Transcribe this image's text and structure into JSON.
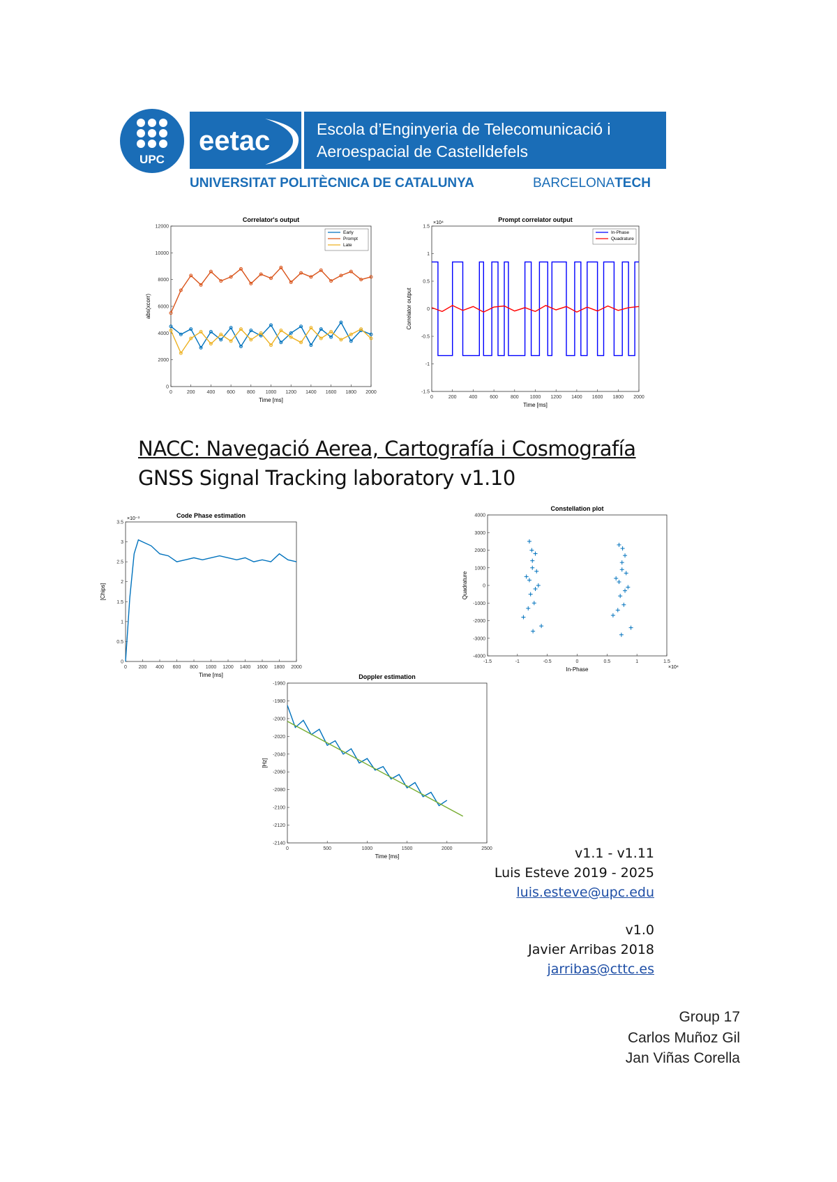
{
  "header": {
    "logo_upc": "UPC",
    "logo_eetac": "eetac",
    "school_line1": "Escola d’Enginyeria de Telecomunicació i",
    "school_line2": "Aeroespacial de Castelldefels",
    "university": "UNIVERSITAT POLITÈCNICA DE CATALUNYA",
    "brand_a": "BARCELONA",
    "brand_b": "TECH"
  },
  "chart_data": [
    {
      "type": "line",
      "title": "Correlator's output",
      "xlabel": "Time [ms]",
      "ylabel": "abs(xcorr)",
      "xlim": [
        0,
        2000
      ],
      "ylim": [
        0,
        12000
      ],
      "xticks": [
        0,
        200,
        400,
        600,
        800,
        1000,
        1200,
        1400,
        1600,
        1800,
        2000
      ],
      "yticks": [
        0,
        2000,
        4000,
        6000,
        8000,
        10000,
        12000
      ],
      "legend": "upper right",
      "markers": true,
      "series": [
        {
          "name": "Early",
          "color": "#0072bd",
          "x": [
            0,
            100,
            200,
            300,
            400,
            500,
            600,
            700,
            800,
            900,
            1000,
            1100,
            1200,
            1300,
            1400,
            1500,
            1600,
            1700,
            1800,
            1900,
            2000
          ],
          "values": [
            4500,
            3900,
            4300,
            2900,
            4100,
            3500,
            4400,
            3000,
            4200,
            3800,
            4600,
            3300,
            4000,
            4500,
            3100,
            4300,
            3700,
            4800,
            3400,
            4200,
            3900
          ]
        },
        {
          "name": "Prompt",
          "color": "#d95319",
          "x": [
            0,
            100,
            200,
            300,
            400,
            500,
            600,
            700,
            800,
            900,
            1000,
            1100,
            1200,
            1300,
            1400,
            1500,
            1600,
            1700,
            1800,
            1900,
            2000
          ],
          "values": [
            5500,
            7200,
            8300,
            7600,
            8600,
            7900,
            8200,
            8800,
            7700,
            8400,
            8100,
            8900,
            7800,
            8500,
            8200,
            8700,
            7900,
            8300,
            8600,
            8000,
            8200
          ]
        },
        {
          "name": "Late",
          "color": "#edb120",
          "x": [
            0,
            100,
            200,
            300,
            400,
            500,
            600,
            700,
            800,
            900,
            1000,
            1100,
            1200,
            1300,
            1400,
            1500,
            1600,
            1700,
            1800,
            1900,
            2000
          ],
          "values": [
            4200,
            2500,
            3600,
            4100,
            3200,
            3900,
            3400,
            4300,
            3500,
            4000,
            3100,
            4200,
            3700,
            3300,
            4400,
            3600,
            4100,
            3500,
            3900,
            4300,
            3600
          ]
        }
      ]
    },
    {
      "type": "line",
      "title": "Prompt correlator output",
      "xlabel": "Time [ms]",
      "ylabel": "Correlator output",
      "xlim": [
        0,
        2000
      ],
      "ylim": [
        -1.5,
        1.5
      ],
      "y_multiplier": "×10⁴",
      "xticks": [
        0,
        200,
        400,
        600,
        800,
        1000,
        1200,
        1400,
        1600,
        1800,
        2000
      ],
      "yticks": [
        -1.5,
        -1,
        -0.5,
        0,
        0.5,
        1,
        1.5
      ],
      "legend": "upper right",
      "series": [
        {
          "name": "In-Phase",
          "color": "#0000ff",
          "x": [
            0,
            60,
            60,
            200,
            200,
            300,
            300,
            460,
            460,
            500,
            500,
            580,
            580,
            640,
            640,
            700,
            700,
            740,
            740,
            900,
            900,
            960,
            960,
            1040,
            1040,
            1120,
            1120,
            1160,
            1160,
            1300,
            1300,
            1380,
            1380,
            1440,
            1440,
            1500,
            1500,
            1600,
            1600,
            1660,
            1660,
            1760,
            1760,
            1840,
            1840,
            1900,
            1900,
            1960,
            1960,
            2000
          ],
          "values": [
            0.85,
            0.85,
            -0.85,
            -0.85,
            0.85,
            0.85,
            -0.85,
            -0.85,
            0.85,
            0.85,
            -0.85,
            -0.85,
            0.85,
            0.85,
            -0.85,
            -0.85,
            0.85,
            0.85,
            -0.85,
            -0.85,
            0.85,
            0.85,
            -0.85,
            -0.85,
            0.85,
            0.85,
            -0.85,
            -0.85,
            0.85,
            0.85,
            -0.85,
            -0.85,
            0.85,
            0.85,
            -0.85,
            -0.85,
            0.85,
            0.85,
            -0.85,
            -0.85,
            0.85,
            0.85,
            -0.85,
            -0.85,
            0.85,
            0.85,
            -0.85,
            -0.85,
            0.85,
            0.85
          ]
        },
        {
          "name": "Quadrature",
          "color": "#ff0000",
          "x": [
            0,
            100,
            200,
            300,
            400,
            500,
            600,
            700,
            800,
            900,
            1000,
            1100,
            1200,
            1300,
            1400,
            1500,
            1600,
            1700,
            1800,
            1900,
            2000
          ],
          "values": [
            0.02,
            -0.05,
            0.06,
            -0.03,
            0.04,
            -0.06,
            0.03,
            0.05,
            -0.04,
            0.02,
            -0.05,
            0.06,
            -0.02,
            0.04,
            -0.06,
            0.03,
            -0.04,
            0.05,
            -0.03,
            0.02,
            0.04
          ]
        }
      ]
    },
    {
      "type": "line",
      "title": "Code Phase estimation",
      "xlabel": "Time [ms]",
      "ylabel": "[Chips]",
      "xlim": [
        0,
        2000
      ],
      "ylim": [
        0,
        3.5
      ],
      "y_multiplier": "×10⁻³",
      "xticks": [
        0,
        200,
        400,
        600,
        800,
        1000,
        1200,
        1400,
        1600,
        1800,
        2000
      ],
      "yticks": [
        0,
        0.5,
        1,
        1.5,
        2,
        2.5,
        3,
        3.5
      ],
      "series": [
        {
          "color": "#0072bd",
          "x": [
            0,
            50,
            100,
            150,
            200,
            300,
            400,
            500,
            600,
            700,
            800,
            900,
            1000,
            1100,
            1200,
            1300,
            1400,
            1500,
            1600,
            1700,
            1800,
            1900,
            2000
          ],
          "values": [
            0,
            1.6,
            2.7,
            3.05,
            3.0,
            2.9,
            2.7,
            2.65,
            2.5,
            2.55,
            2.6,
            2.55,
            2.6,
            2.65,
            2.6,
            2.55,
            2.6,
            2.5,
            2.55,
            2.5,
            2.7,
            2.55,
            2.5
          ]
        }
      ]
    },
    {
      "type": "scatter",
      "title": "Constellation plot",
      "xlabel": "In-Phase",
      "ylabel": "Quadrature",
      "xlim": [
        -1.5,
        1.5
      ],
      "ylim": [
        -4000,
        4000
      ],
      "x_multiplier": "×10⁴",
      "xticks": [
        -1.5,
        -1,
        -0.5,
        0,
        0.5,
        1,
        1.5
      ],
      "yticks": [
        -4000,
        -3000,
        -2000,
        -1000,
        0,
        1000,
        2000,
        3000,
        4000
      ],
      "series": [
        {
          "color": "#0072bd",
          "x": [
            -0.8,
            -0.7,
            -0.75,
            -0.85,
            -0.65,
            -0.78,
            -0.72,
            -0.9,
            -0.6,
            -0.8,
            -0.7,
            -0.75,
            -0.82,
            -0.68,
            -0.76,
            -0.74,
            0.7,
            0.8,
            0.75,
            0.65,
            0.85,
            0.72,
            0.78,
            0.6,
            0.9,
            0.7,
            0.8,
            0.75,
            0.68,
            0.82,
            0.76,
            0.74
          ],
          "values": [
            2500,
            1800,
            1000,
            500,
            0,
            -500,
            -1000,
            -1800,
            -2300,
            300,
            -200,
            1400,
            -1300,
            800,
            2000,
            -2600,
            2300,
            1700,
            900,
            400,
            -100,
            -600,
            -1100,
            -1700,
            -2400,
            200,
            -300,
            1300,
            -1400,
            700,
            2100,
            -2800
          ]
        }
      ]
    },
    {
      "type": "line",
      "title": "Doppler estimation",
      "xlabel": "Time [ms]",
      "ylabel": "[Hz]",
      "xlim": [
        0,
        2500
      ],
      "ylim": [
        -2140,
        -1960
      ],
      "xticks": [
        0,
        500,
        1000,
        1500,
        2000,
        2500
      ],
      "yticks": [
        -2140,
        -2120,
        -2100,
        -2080,
        -2060,
        -2040,
        -2020,
        -2000,
        -1980,
        -1960
      ],
      "series": [
        {
          "color": "#0072bd",
          "x": [
            0,
            100,
            200,
            300,
            400,
            500,
            600,
            700,
            800,
            900,
            1000,
            1100,
            1200,
            1300,
            1400,
            1500,
            1600,
            1700,
            1800,
            1900,
            2000
          ],
          "values": [
            -1985,
            -2010,
            -2002,
            -2018,
            -2012,
            -2030,
            -2025,
            -2040,
            -2034,
            -2050,
            -2045,
            -2058,
            -2054,
            -2068,
            -2063,
            -2078,
            -2072,
            -2088,
            -2083,
            -2098,
            -2092
          ]
        },
        {
          "color": "#77ac30",
          "x": [
            0,
            2200
          ],
          "values": [
            -2003,
            -2110
          ]
        }
      ]
    }
  ],
  "title": {
    "line1": "NACC: Navegació Aerea, Cartografía i Cosmografía",
    "line2": "GNSS Signal Tracking laboratory v1.10"
  },
  "credits": {
    "versions_a": "v1.1 - v1.11",
    "author_a": "Luis Esteve 2019 - 2025",
    "email_a": "luis.esteve@upc.edu",
    "versions_b": "v1.0",
    "author_b": "Javier Arribas 2018",
    "email_b": "jarribas@cttc.es"
  },
  "group": {
    "name": "Group 17",
    "member_1": "Carlos Muñoz Gil",
    "member_2": "Jan Viñas Corella"
  }
}
